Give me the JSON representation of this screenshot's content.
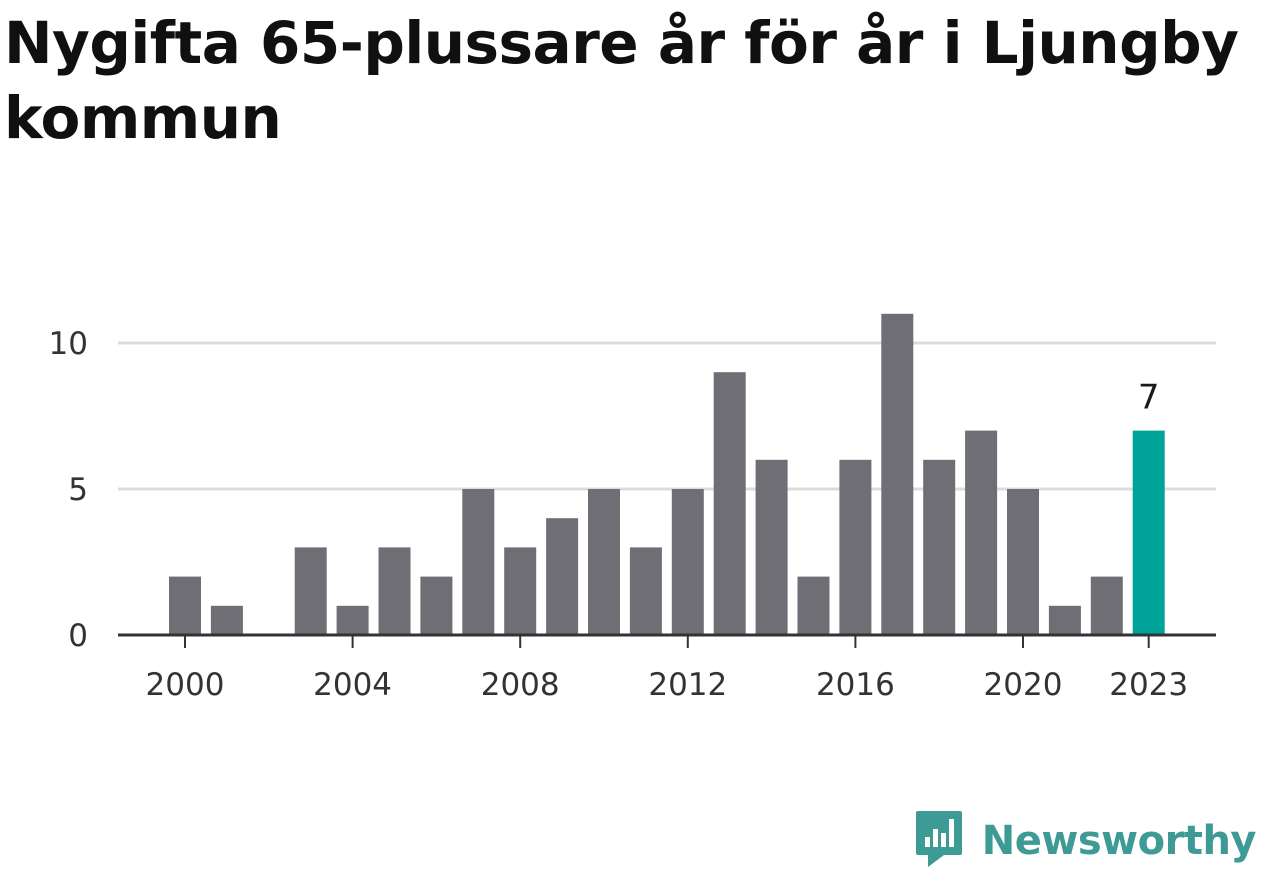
{
  "title": "Nygifta 65-plussare år för år i Ljungby kommun",
  "brand": {
    "name": "Newsworthy",
    "logo_icon": "newsworthy-logo-icon"
  },
  "colors": {
    "bar": "#6f6e74",
    "highlight": "#00a39a",
    "grid": "#dcdcdc",
    "axis": "#333333",
    "brand": "#3e9a94"
  },
  "chart_data": {
    "type": "bar",
    "categories": [
      2000,
      2001,
      2002,
      2003,
      2004,
      2005,
      2006,
      2007,
      2008,
      2009,
      2010,
      2011,
      2012,
      2013,
      2014,
      2015,
      2016,
      2017,
      2018,
      2019,
      2020,
      2021,
      2022,
      2023
    ],
    "values": [
      2,
      1,
      0,
      3,
      1,
      3,
      2,
      5,
      3,
      4,
      5,
      3,
      5,
      9,
      6,
      2,
      6,
      11,
      6,
      7,
      5,
      1,
      2,
      7
    ],
    "highlight_category": 2023,
    "annotations": [
      {
        "category": 2023,
        "label": "7"
      }
    ],
    "xticks": [
      "2000",
      "2004",
      "2008",
      "2012",
      "2016",
      "2020",
      "2023"
    ],
    "yticks": [
      "0",
      "5",
      "10"
    ],
    "ylim": [
      0,
      11
    ],
    "grid": true,
    "xlabel": "",
    "ylabel": ""
  }
}
